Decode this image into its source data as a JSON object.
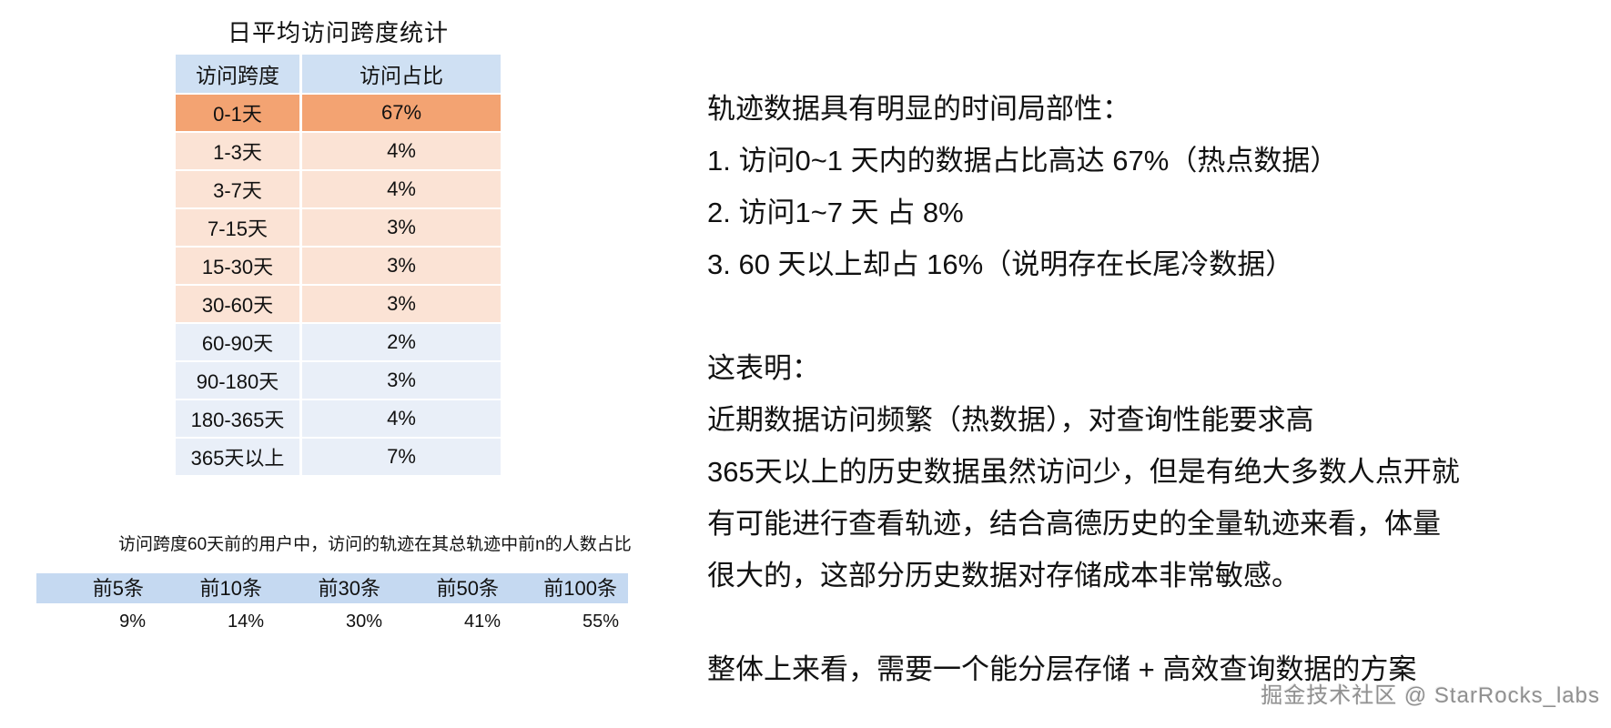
{
  "left": {
    "table1": {
      "title": "日平均访问跨度统计",
      "headers": [
        "访问跨度",
        "访问占比"
      ],
      "rows": [
        {
          "span": "0-1天",
          "pct": "67%"
        },
        {
          "span": "1-3天",
          "pct": "4%"
        },
        {
          "span": "3-7天",
          "pct": "4%"
        },
        {
          "span": "7-15天",
          "pct": "3%"
        },
        {
          "span": "15-30天",
          "pct": "3%"
        },
        {
          "span": "30-60天",
          "pct": "3%"
        },
        {
          "span": "60-90天",
          "pct": "2%"
        },
        {
          "span": "90-180天",
          "pct": "3%"
        },
        {
          "span": "180-365天",
          "pct": "4%"
        },
        {
          "span": "365天以上",
          "pct": "7%"
        }
      ]
    },
    "caption": "访问跨度60天前的用户中，访问的轨迹在其总轨迹中前n的人数占比",
    "table2": {
      "headers": [
        "前5条",
        "前10条",
        "前30条",
        "前50条",
        "前100条"
      ],
      "values": [
        "9%",
        "14%",
        "30%",
        "41%",
        "55%"
      ]
    }
  },
  "right": {
    "paragraphs": [
      {
        "lines": [
          "轨迹数据具有明显的时间局部性：",
          "1. 访问0~1 天内的数据占比高达 67%（热点数据）",
          "2. 访问1~7 天 占 8%",
          "3. 60 天以上却占 16%（说明存在长尾冷数据）"
        ]
      },
      {
        "lines": [
          "这表明：",
          "近期数据访问频繁（热数据），对查询性能要求高",
          "365天以上的历史数据虽然访问少，但是有绝大多数人点开就",
          "有可能进行查看轨迹，结合高德历史的全量轨迹来看，体量",
          "很大的，这部分历史数据对存储成本非常敏感。"
        ]
      },
      {
        "lines": [
          "整体上来看，需要一个能分层存储 + 高效查询数据的方案"
        ]
      }
    ]
  },
  "watermark": "掘金技术社区 @ StarRocks_labs",
  "colors": {
    "t1-header-bg": "#cfe0f3",
    "hot-row-bg": "#f3a372",
    "warm-row-bg": "#fbe3d5",
    "cool-row-bg": "#e9eff8",
    "t2-header-bg": "#c5d9f1",
    "text": "#111111",
    "watermark": "#909090"
  },
  "chart_data": [
    {
      "type": "table",
      "title": "日平均访问跨度统计",
      "columns": [
        "访问跨度",
        "访问占比"
      ],
      "rows": [
        [
          "0-1天",
          "67%"
        ],
        [
          "1-3天",
          "4%"
        ],
        [
          "3-7天",
          "4%"
        ],
        [
          "7-15天",
          "3%"
        ],
        [
          "15-30天",
          "3%"
        ],
        [
          "30-60天",
          "3%"
        ],
        [
          "60-90天",
          "2%"
        ],
        [
          "90-180天",
          "3%"
        ],
        [
          "180-365天",
          "4%"
        ],
        [
          "365天以上",
          "7%"
        ]
      ],
      "highlight_row": "0-1天"
    },
    {
      "type": "table",
      "title": "访问跨度60天前的用户中，访问的轨迹在其总轨迹中前n的人数占比",
      "columns": [
        "前5条",
        "前10条",
        "前30条",
        "前50条",
        "前100条"
      ],
      "rows": [
        [
          "9%",
          "14%",
          "30%",
          "41%",
          "55%"
        ]
      ]
    }
  ]
}
